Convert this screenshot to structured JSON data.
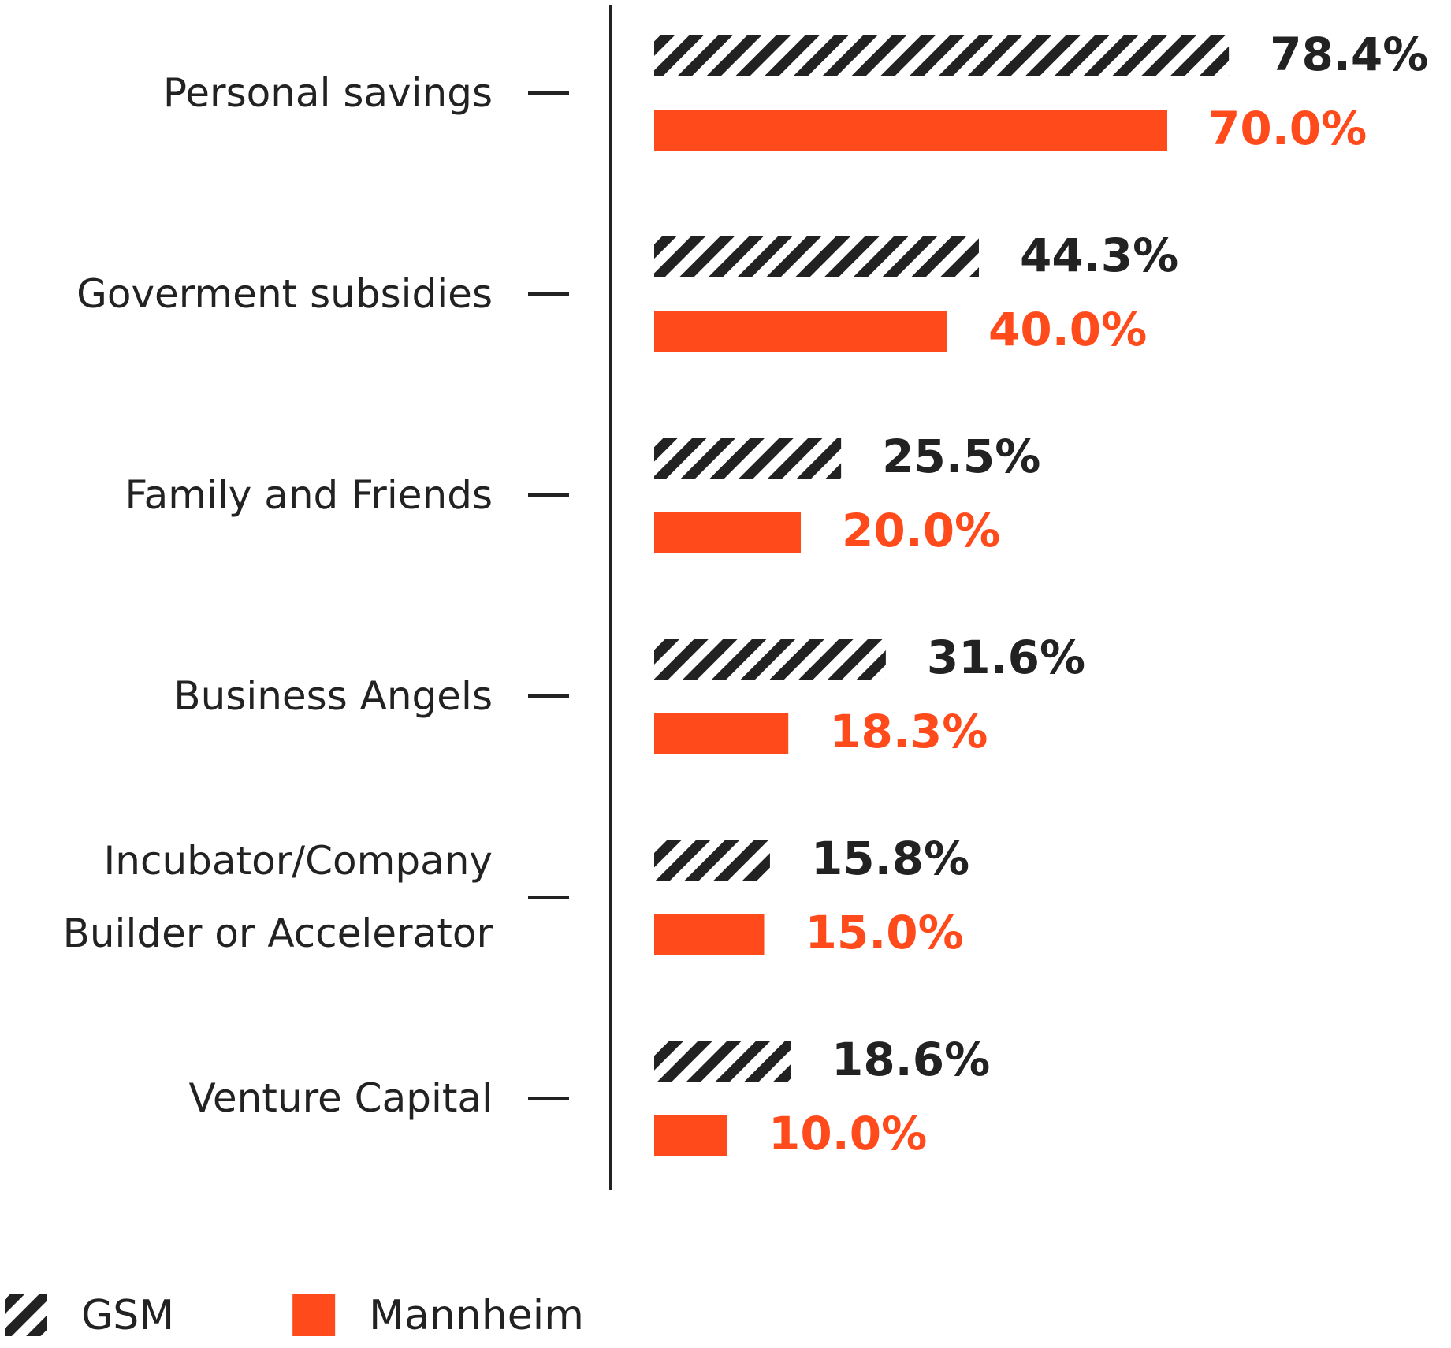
{
  "chart_data": {
    "type": "barh",
    "categories": [
      "Personal savings",
      "Goverment subsidies",
      "Family and Friends",
      "Business Angels",
      "Incubator/Company Builder or Accelerator",
      "Venture Capital"
    ],
    "series": [
      {
        "name": "GSM",
        "color": "#222222",
        "pattern": "hatch",
        "values": [
          78.4,
          44.3,
          25.5,
          31.6,
          15.8,
          18.6
        ],
        "value_labels": [
          "78.4%",
          "44.3%",
          "25.5%",
          "31.6%",
          "15.8%",
          "18.6%"
        ]
      },
      {
        "name": "Mannheim",
        "color": "#ff4a1c",
        "pattern": "solid",
        "values": [
          70.0,
          40.0,
          20.0,
          18.3,
          15.0,
          10.0
        ],
        "value_labels": [
          "70.0%",
          "40.0%",
          "20.0%",
          "18.3%",
          "15.0%",
          "10.0%"
        ]
      }
    ],
    "xlim": [
      0,
      100
    ],
    "legend": "bottom-left"
  }
}
